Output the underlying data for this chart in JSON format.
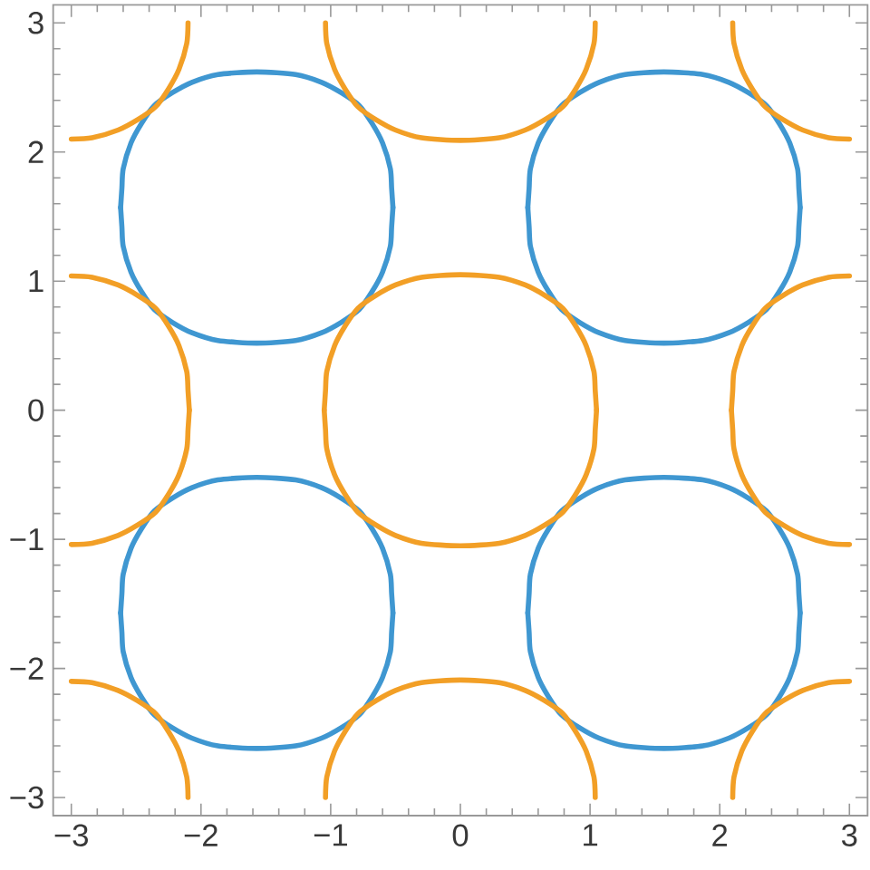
{
  "chart_data": {
    "type": "line",
    "xlim": [
      -3.14,
      3.14
    ],
    "ylim": [
      -3.14,
      3.14
    ],
    "xticks": [
      {
        "value": -3,
        "label": "−3"
      },
      {
        "value": -2,
        "label": "−2"
      },
      {
        "value": -1,
        "label": "−1"
      },
      0,
      1,
      2,
      3,
      {
        "value": -2.8,
        "label": null
      },
      {
        "value": -2.6,
        "label": null
      },
      {
        "value": -2.4,
        "label": null
      },
      {
        "value": -2.2,
        "label": null
      },
      {
        "value": -1.8,
        "label": null
      },
      {
        "value": -1.6,
        "label": null
      },
      {
        "value": -1.4,
        "label": null
      },
      {
        "value": -1.2,
        "label": null
      },
      {
        "value": -0.8,
        "label": null
      },
      {
        "value": -0.6,
        "label": null
      },
      {
        "value": -0.4,
        "label": null
      },
      {
        "value": -0.2,
        "label": null
      },
      {
        "value": 0.2,
        "label": null
      },
      {
        "value": 0.4,
        "label": null
      },
      {
        "value": 0.6,
        "label": null
      },
      {
        "value": 0.8,
        "label": null
      },
      {
        "value": 1.2,
        "label": null
      },
      {
        "value": 1.4,
        "label": null
      },
      {
        "value": 1.6,
        "label": null
      },
      {
        "value": 1.8,
        "label": null
      },
      {
        "value": 2.2,
        "label": null
      },
      {
        "value": 2.4,
        "label": null
      },
      {
        "value": 2.6,
        "label": null
      },
      {
        "value": 2.8,
        "label": null
      }
    ],
    "yticks": [
      {
        "value": -3,
        "label": "−3"
      },
      {
        "value": -2,
        "label": "−2"
      },
      {
        "value": -1,
        "label": "−1"
      },
      0,
      1,
      2,
      3,
      {
        "value": -2.8,
        "label": null
      },
      {
        "value": -2.6,
        "label": null
      },
      {
        "value": -2.4,
        "label": null
      },
      {
        "value": -2.2,
        "label": null
      },
      {
        "value": -1.8,
        "label": null
      },
      {
        "value": -1.6,
        "label": null
      },
      {
        "value": -1.4,
        "label": null
      },
      {
        "value": -1.2,
        "label": null
      },
      {
        "value": -0.8,
        "label": null
      },
      {
        "value": -0.6,
        "label": null
      },
      {
        "value": -0.4,
        "label": null
      },
      {
        "value": -0.2,
        "label": null
      },
      {
        "value": 0.2,
        "label": null
      },
      {
        "value": 0.4,
        "label": null
      },
      {
        "value": 0.6,
        "label": null
      },
      {
        "value": 0.8,
        "label": null
      },
      {
        "value": 1.2,
        "label": null
      },
      {
        "value": 1.4,
        "label": null
      },
      {
        "value": 1.6,
        "label": null
      },
      {
        "value": 1.8,
        "label": null
      },
      {
        "value": 2.2,
        "label": null
      },
      {
        "value": 2.4,
        "label": null
      },
      {
        "value": 2.6,
        "label": null
      },
      {
        "value": 2.8,
        "label": null
      }
    ],
    "series": [
      {
        "color": "#3f97d1",
        "x": [
          -2.62,
          -2.61,
          -2.6,
          -2.54,
          -2.46,
          -2.36,
          -2.22,
          -2.07,
          -1.87,
          -1.57,
          -1.27,
          -1.07,
          -0.92,
          -0.78,
          -0.68,
          -0.6,
          -0.54,
          -0.53,
          -0.52,
          null,
          0.52,
          0.53,
          0.54,
          0.6,
          0.68,
          0.78,
          0.92,
          1.07,
          1.27,
          1.57,
          1.87,
          2.07,
          2.22,
          2.36,
          2.46,
          2.54,
          2.6,
          2.61,
          2.62
        ],
        "values": [
          1.57,
          1.72,
          1.87,
          2.07,
          2.22,
          2.36,
          2.46,
          2.54,
          2.6,
          2.62,
          2.6,
          2.54,
          2.46,
          2.36,
          2.22,
          2.07,
          1.87,
          1.72,
          1.57,
          null,
          1.57,
          1.42,
          1.27,
          1.07,
          0.92,
          0.78,
          0.68,
          0.6,
          0.54,
          0.52,
          0.54,
          0.6,
          0.68,
          0.78,
          0.92,
          1.07,
          1.27,
          1.42,
          1.57
        ]
      },
      {
        "color": "#3f97d1",
        "x": [
          0.52,
          0.53,
          0.54,
          0.6,
          0.68,
          0.78,
          0.92,
          1.07,
          1.27,
          1.57,
          1.87,
          2.07,
          2.22,
          2.36,
          2.46,
          2.54,
          2.6,
          2.61,
          2.62,
          null,
          -2.62,
          -2.61,
          -2.6,
          -2.54,
          -2.46,
          -2.36,
          -2.22,
          -2.07,
          -1.87,
          -1.57,
          -1.27,
          -1.07,
          -0.92,
          -0.78,
          -0.68,
          -0.6,
          -0.54,
          -0.53,
          -0.52
        ],
        "values": [
          1.57,
          1.72,
          1.87,
          2.07,
          2.22,
          2.36,
          2.46,
          2.54,
          2.6,
          2.62,
          2.6,
          2.54,
          2.46,
          2.36,
          2.22,
          2.07,
          1.87,
          1.72,
          1.57,
          null,
          1.57,
          1.42,
          1.27,
          1.07,
          0.92,
          0.78,
          0.68,
          0.6,
          0.54,
          0.52,
          0.54,
          0.6,
          0.68,
          0.78,
          0.92,
          1.07,
          1.27,
          1.42,
          1.57
        ]
      },
      {
        "color": "#3f97d1",
        "x": [
          -2.62,
          -2.61,
          -2.6,
          -2.54,
          -2.46,
          -2.36,
          -2.22,
          -2.07,
          -1.87,
          -1.57,
          -1.27,
          -1.07,
          -0.92,
          -0.78,
          -0.68,
          -0.6,
          -0.54,
          -0.53,
          -0.52,
          null,
          0.52,
          0.53,
          0.54,
          0.6,
          0.68,
          0.78,
          0.92,
          1.07,
          1.27,
          1.57,
          1.87,
          2.07,
          2.22,
          2.36,
          2.46,
          2.54,
          2.6,
          2.61,
          2.62
        ],
        "values": [
          -1.57,
          -1.42,
          -1.27,
          -1.07,
          -0.92,
          -0.78,
          -0.68,
          -0.6,
          -0.54,
          -0.52,
          -0.54,
          -0.6,
          -0.68,
          -0.78,
          -0.92,
          -1.07,
          -1.27,
          -1.42,
          -1.57,
          null,
          -1.57,
          -1.72,
          -1.87,
          -2.07,
          -2.22,
          -2.36,
          -2.46,
          -2.54,
          -2.6,
          -2.62,
          -2.6,
          -2.54,
          -2.46,
          -2.36,
          -2.22,
          -2.07,
          -1.87,
          -1.72,
          -1.57
        ]
      },
      {
        "color": "#3f97d1",
        "x": [
          0.52,
          0.53,
          0.54,
          0.6,
          0.68,
          0.78,
          0.92,
          1.07,
          1.27,
          1.57,
          1.87,
          2.07,
          2.22,
          2.36,
          2.46,
          2.54,
          2.6,
          2.61,
          2.62,
          null,
          -2.62,
          -2.61,
          -2.6,
          -2.54,
          -2.46,
          -2.36,
          -2.22,
          -2.07,
          -1.87,
          -1.57,
          -1.27,
          -1.07,
          -0.92,
          -0.78,
          -0.68,
          -0.6,
          -0.54,
          -0.53,
          -0.52
        ],
        "values": [
          -1.57,
          -1.42,
          -1.27,
          -1.07,
          -0.92,
          -0.78,
          -0.68,
          -0.6,
          -0.54,
          -0.52,
          -0.54,
          -0.6,
          -0.68,
          -0.78,
          -0.92,
          -1.07,
          -1.27,
          -1.42,
          -1.57,
          null,
          -1.57,
          -1.72,
          -1.87,
          -2.07,
          -2.22,
          -2.36,
          -2.46,
          -2.54,
          -2.6,
          -2.62,
          -2.6,
          -2.54,
          -2.46,
          -2.36,
          -2.22,
          -2.07,
          -1.87,
          -1.72,
          -1.57
        ]
      },
      {
        "color": "#f29f26",
        "x": [
          -3,
          -2.84,
          -2.64,
          -2.49,
          -2.35,
          -2.25,
          -2.17,
          -2.11,
          -2.1,
          null,
          -1.04,
          -1.03,
          -0.97,
          -0.89,
          -0.79,
          -0.65,
          -0.5,
          -0.3,
          0,
          0.3,
          0.5,
          0.65,
          0.79,
          0.89,
          0.97,
          1.03,
          1.04,
          null,
          2.1,
          2.11,
          2.17,
          2.25,
          2.35,
          2.49,
          2.64,
          2.84,
          3
        ],
        "values": [
          2.1,
          2.11,
          2.17,
          2.25,
          2.35,
          2.49,
          2.64,
          2.84,
          3,
          null,
          3,
          2.84,
          2.64,
          2.49,
          2.35,
          2.25,
          2.17,
          2.11,
          2.09,
          2.11,
          2.17,
          2.25,
          2.35,
          2.49,
          2.64,
          2.84,
          3,
          null,
          3,
          2.84,
          2.64,
          2.49,
          2.35,
          2.25,
          2.17,
          2.11,
          2.1
        ]
      },
      {
        "color": "#f29f26",
        "x": [
          -3,
          -2.84,
          -2.64,
          -2.49,
          -2.35,
          -2.25,
          -2.17,
          -2.11,
          -2.1,
          -2.09,
          null,
          -1.05,
          -1.04,
          -1.03,
          -0.97,
          -0.89,
          -0.79,
          -0.65,
          -0.5,
          -0.3,
          0,
          0.3,
          0.5,
          0.65,
          0.79,
          0.89,
          0.97,
          1.03,
          1.04,
          1.05,
          null,
          2.09,
          2.1,
          2.11,
          2.17,
          2.25,
          2.35,
          2.49,
          2.64,
          2.84,
          3
        ],
        "values": [
          1.04,
          1.03,
          0.97,
          0.89,
          0.79,
          0.65,
          0.5,
          0.3,
          0.15,
          0,
          null,
          0,
          0.15,
          0.3,
          0.5,
          0.65,
          0.79,
          0.89,
          0.97,
          1.03,
          1.05,
          1.03,
          0.97,
          0.89,
          0.79,
          0.65,
          0.5,
          0.3,
          0.15,
          0,
          null,
          0,
          0.15,
          0.3,
          0.5,
          0.65,
          0.79,
          0.89,
          0.97,
          1.03,
          1.04
        ]
      },
      {
        "color": "#f29f26",
        "x": [
          -3,
          -2.84,
          -2.64,
          -2.49,
          -2.35,
          -2.25,
          -2.17,
          -2.11,
          -2.1,
          -2.09,
          null,
          -1.05,
          -1.04,
          -1.03,
          -0.97,
          -0.89,
          -0.79,
          -0.65,
          -0.5,
          -0.3,
          0,
          0.3,
          0.5,
          0.65,
          0.79,
          0.89,
          0.97,
          1.03,
          1.04,
          1.05,
          null,
          2.09,
          2.1,
          2.11,
          2.17,
          2.25,
          2.35,
          2.49,
          2.64,
          2.84,
          3
        ],
        "values": [
          -1.04,
          -1.03,
          -0.97,
          -0.89,
          -0.79,
          -0.65,
          -0.5,
          -0.3,
          -0.15,
          0,
          null,
          0,
          -0.15,
          -0.3,
          -0.5,
          -0.65,
          -0.79,
          -0.89,
          -0.97,
          -1.03,
          -1.05,
          -1.03,
          -0.97,
          -0.89,
          -0.79,
          -0.65,
          -0.5,
          -0.3,
          -0.15,
          0,
          null,
          0,
          -0.15,
          -0.3,
          -0.5,
          -0.65,
          -0.79,
          -0.89,
          -0.97,
          -1.03,
          -1.04
        ]
      },
      {
        "color": "#f29f26",
        "x": [
          -3,
          -2.84,
          -2.64,
          -2.49,
          -2.35,
          -2.25,
          -2.17,
          -2.11,
          -2.1,
          null,
          -1.04,
          -1.03,
          -0.97,
          -0.89,
          -0.79,
          -0.65,
          -0.5,
          -0.3,
          0,
          0.3,
          0.5,
          0.65,
          0.79,
          0.89,
          0.97,
          1.03,
          1.04,
          null,
          2.1,
          2.11,
          2.17,
          2.25,
          2.35,
          2.49,
          2.64,
          2.84,
          3
        ],
        "values": [
          -2.1,
          -2.11,
          -2.17,
          -2.25,
          -2.35,
          -2.49,
          -2.64,
          -2.84,
          -3,
          null,
          -3,
          -2.84,
          -2.64,
          -2.49,
          -2.35,
          -2.25,
          -2.17,
          -2.11,
          -2.09,
          -2.11,
          -2.17,
          -2.25,
          -2.35,
          -2.49,
          -2.64,
          -2.84,
          -3,
          null,
          -3,
          -2.84,
          -2.64,
          -2.49,
          -2.35,
          -2.25,
          -2.17,
          -2.11,
          -2.1
        ]
      }
    ]
  }
}
